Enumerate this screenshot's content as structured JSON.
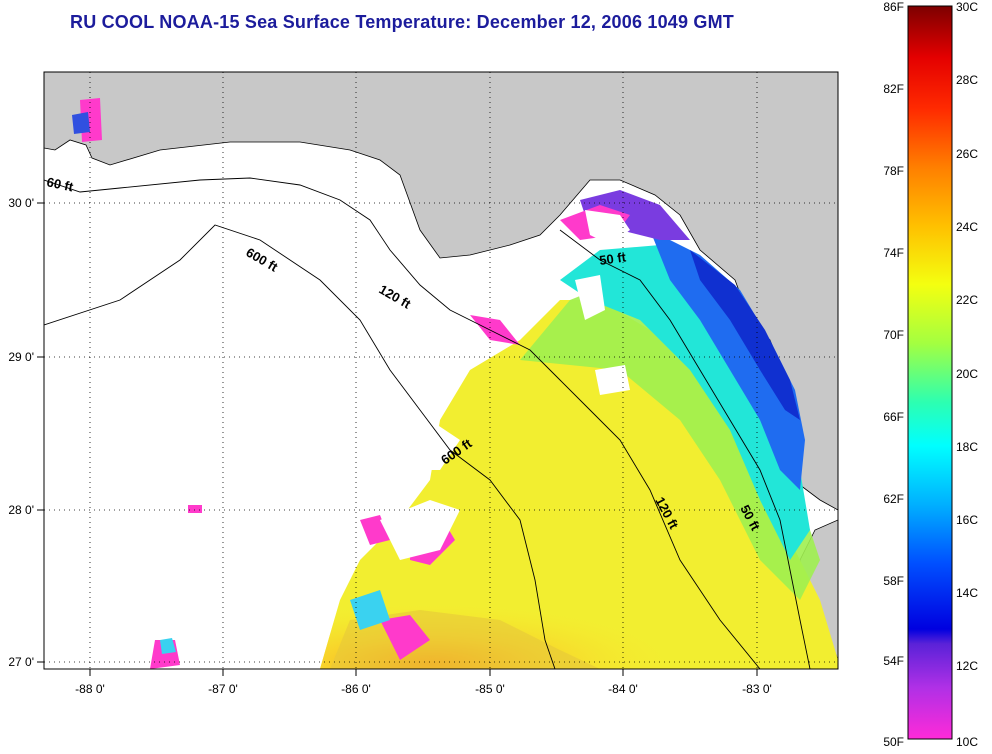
{
  "title": "RU COOL  NOAA-15  Sea Surface Temperature:  December 12, 2006 1049 GMT",
  "map": {
    "lon_ticks": [
      "-88 0'",
      "-87 0'",
      "-86 0'",
      "-85 0'",
      "-84 0'",
      "-83 0'"
    ],
    "lat_ticks": [
      "30 0'",
      "29 0'",
      "28 0'",
      "27 0'"
    ],
    "contour_labels": [
      "60 ft",
      "600 ft",
      "120 ft",
      "50 ft",
      "600 ft",
      "120 ft",
      "50 ft"
    ],
    "colors": {
      "land": "#c8c8c8",
      "cloud": "#ffffff",
      "contour": "#000000"
    }
  },
  "colorbar": {
    "f_labels": [
      "86F",
      "82F",
      "78F",
      "74F",
      "70F",
      "66F",
      "62F",
      "58F",
      "54F",
      "50F"
    ],
    "c_labels": [
      "30C",
      "28C",
      "26C",
      "24C",
      "22C",
      "20C",
      "18C",
      "16C",
      "14C",
      "12C",
      "10C"
    ],
    "range_c": [
      10,
      30
    ]
  }
}
